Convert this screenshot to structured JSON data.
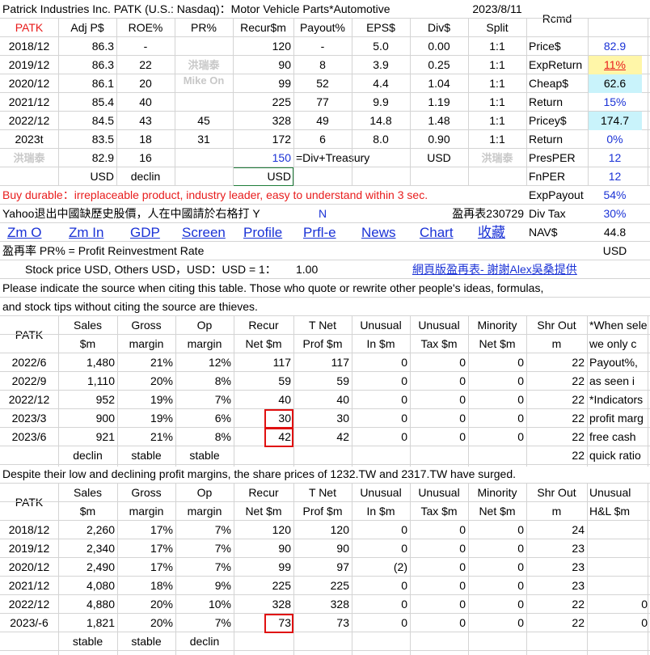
{
  "header": {
    "title": "Patrick Industries Inc. PATK (U.S.: Nasdaq)：Motor Vehicle Parts*Automotive",
    "date": "2023/8/11",
    "rcmd": "Rcmd"
  },
  "annual_top": {
    "headers": [
      "PATK",
      "Adj P$",
      "ROE%",
      "PR%",
      "Recur$m",
      "Payout%",
      "EPS$",
      "Div$",
      "Split"
    ],
    "rows": [
      [
        "2018/12",
        "86.3",
        "-",
        "",
        "120",
        "-",
        "5.0",
        "0.00",
        "1:1"
      ],
      [
        "2019/12",
        "86.3",
        "22",
        "",
        "90",
        "8",
        "3.9",
        "0.25",
        "1:1"
      ],
      [
        "2020/12",
        "86.1",
        "20",
        "",
        "99",
        "52",
        "4.4",
        "1.04",
        "1:1"
      ],
      [
        "2021/12",
        "85.4",
        "40",
        "",
        "225",
        "77",
        "9.9",
        "1.19",
        "1:1"
      ],
      [
        "2022/12",
        "84.5",
        "43",
        "45",
        "328",
        "49",
        "14.8",
        "1.48",
        "1:1"
      ],
      [
        "2023t",
        "83.5",
        "18",
        "31",
        "172",
        "6",
        "8.0",
        "0.90",
        "1:1"
      ],
      [
        "洪瑞泰",
        "82.9",
        "16",
        "",
        "150",
        "=Div+Treasury",
        "",
        "USD",
        "洪瑞泰"
      ],
      [
        "",
        "USD",
        "declin",
        "",
        "USD",
        "",
        "",
        "",
        ""
      ]
    ],
    "watermark_mid": "洪瑞泰",
    "watermark_mid2": "Mike On"
  },
  "right_panel": [
    {
      "label": "Price$",
      "value": "82.9"
    },
    {
      "label": "ExpReturn",
      "value": "11%"
    },
    {
      "label": "Cheap$",
      "value": "62.6"
    },
    {
      "label": "Return",
      "value": "15%"
    },
    {
      "label": "Pricey$",
      "value": "174.7"
    },
    {
      "label": "Return",
      "value": "0%"
    },
    {
      "label": "PresPER",
      "value": "12"
    },
    {
      "label": "FnPER",
      "value": "12"
    },
    {
      "label": "ExpPayout",
      "value": "54%"
    },
    {
      "label": "Div Tax",
      "value": "30%"
    },
    {
      "label": "NAV$",
      "value": "44.8"
    },
    {
      "label": "",
      "value": "USD"
    }
  ],
  "buy_note": "Buy durable：irreplaceable product, industry leader, easy to understand within 3 sec.",
  "yahoo_note": "Yahoo退出中國缺歷史股價，人在中國請於右格打 Y",
  "yahoo_flag": "N",
  "ratio_table_label": "盈再表230729",
  "links": [
    "Zm O",
    "Zm In",
    "GDP",
    "Screen",
    "Profile",
    "Prfl-e",
    "News",
    "Chart",
    "收藏"
  ],
  "pr_def": "盈再率 PR% = Profit Reinvestment Rate",
  "stock_price_line": "Stock price USD, Others USD，USD：USD = 1：",
  "fx_value": "1.00",
  "credit_link": "網頁版盈再表- 謝謝Alex吳桑提供",
  "notice1": "Please indicate the source when citing this table. Those who quote or rewrite other people's ideas, formulas,",
  "notice2": "and stock tips without citing the source are thieves.",
  "quarterly": {
    "headers1": [
      "PATK",
      "Sales",
      "Gross",
      "Op",
      "Recur",
      "T Net",
      "Unusual",
      "Unusual",
      "Minority",
      "Shr Out",
      "*When sele"
    ],
    "headers2": [
      "",
      "$m",
      "margin",
      "margin",
      "Net $m",
      "Prof $m",
      "In $m",
      "Tax $m",
      "Net $m",
      "m",
      "we only c"
    ],
    "rows": [
      [
        "2022/6",
        "1,480",
        "21%",
        "12%",
        "117",
        "117",
        "0",
        "0",
        "0",
        "22",
        "Payout%,"
      ],
      [
        "2022/9",
        "1,110",
        "20%",
        "8%",
        "59",
        "59",
        "0",
        "0",
        "0",
        "22",
        "as seen i"
      ],
      [
        "2022/12",
        "952",
        "19%",
        "7%",
        "40",
        "40",
        "0",
        "0",
        "0",
        "22",
        "*Indicators"
      ],
      [
        "2023/3",
        "900",
        "19%",
        "6%",
        "30",
        "30",
        "0",
        "0",
        "0",
        "22",
        "profit marg"
      ],
      [
        "2023/6",
        "921",
        "21%",
        "8%",
        "42",
        "42",
        "0",
        "0",
        "0",
        "22",
        "free cash"
      ],
      [
        "",
        "declin",
        "stable",
        "stable",
        "",
        "",
        "",
        "",
        "",
        "22",
        "quick ratio"
      ]
    ]
  },
  "despite_note": "Despite their low and declining profit margins, the share prices of 1232.TW and 2317.TW have surged.",
  "annual_bottom": {
    "headers1": [
      "PATK",
      "Sales",
      "Gross",
      "Op",
      "Recur",
      "T Net",
      "Unusual",
      "Unusual",
      "Minority",
      "Shr Out",
      "Unusual"
    ],
    "headers2": [
      "",
      "$m",
      "margin",
      "margin",
      "Net $m",
      "Prof $m",
      "In $m",
      "Tax $m",
      "Net $m",
      "m",
      "H&L $m"
    ],
    "rows": [
      [
        "2018/12",
        "2,260",
        "17%",
        "7%",
        "120",
        "120",
        "0",
        "0",
        "0",
        "24",
        ""
      ],
      [
        "2019/12",
        "2,340",
        "17%",
        "7%",
        "90",
        "90",
        "0",
        "0",
        "0",
        "23",
        ""
      ],
      [
        "2020/12",
        "2,490",
        "17%",
        "7%",
        "99",
        "97",
        "(2)",
        "0",
        "0",
        "23",
        ""
      ],
      [
        "2021/12",
        "4,080",
        "18%",
        "9%",
        "225",
        "225",
        "0",
        "0",
        "0",
        "23",
        ""
      ],
      [
        "2022/12",
        "4,880",
        "20%",
        "10%",
        "328",
        "328",
        "0",
        "0",
        "0",
        "22",
        "0"
      ],
      [
        "2023/-6",
        "1,821",
        "20%",
        "7%",
        "73",
        "73",
        "0",
        "0",
        "0",
        "22",
        "0"
      ],
      [
        "",
        "stable",
        "stable",
        "declin",
        "",
        "",
        "",
        "",
        "",
        "",
        ""
      ]
    ]
  },
  "colors": {
    "link_blue": "#1a32d6",
    "alert_red": "#e81c1c",
    "highlight_cyan": "#c9f3fb",
    "highlight_yellow": "#fff6a8",
    "box_red": "#e01010"
  }
}
